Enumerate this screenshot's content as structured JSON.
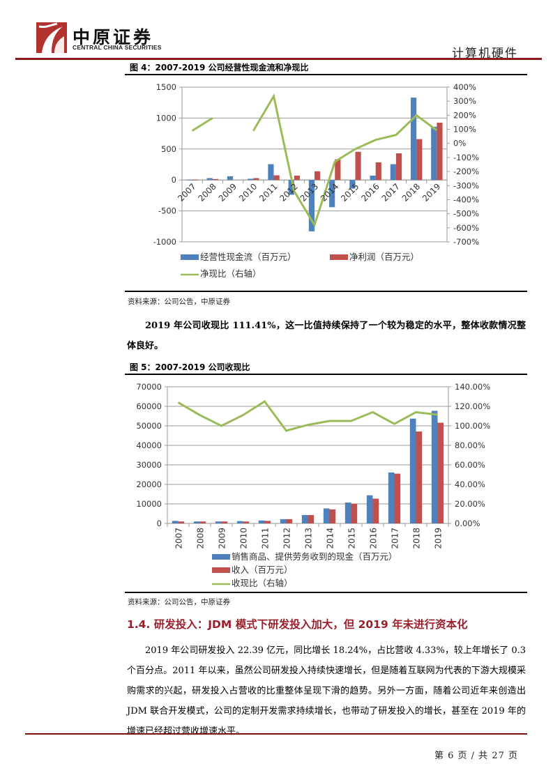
{
  "header": {
    "logo_cn": "中原证券",
    "logo_en": "CENTRAL CHINA SECURITIES",
    "category": "计算机硬件",
    "colors": {
      "brand": "#b2322f",
      "rule": "#8b1a1a"
    }
  },
  "figure4": {
    "title": "图 4：2007-2019 公司经营性现金流和净现比",
    "source": "资料来源：公司公告，中原证券"
  },
  "paragraph1": "2019 年公司收现比 111.41%，这一比值持续保持了一个较为稳定的水平，整体收款情况整体良好。",
  "figure5": {
    "title": "图 5：2007-2019 公司收现比",
    "source": "资料来源：公司公告，中原证券"
  },
  "section": {
    "title": "1.4. 研发投入：JDM 模式下研发投入加大，但 2019 年未进行资本化",
    "paragraph": "2019 年公司研发投入 22.39 亿元，同比增长 18.24%，占比营收 4.33%，较上年增长了 0.3 个百分点。2011 年以来，虽然公司研发投入持续快速增长，但是随着互联网为代表的下游大规模采购需求的兴起，研发投入占营收的比重整体呈现下滑的趋势。另外一方面，随着公司近年来创造出 JDM 联合开发模式，公司的定制开发需求持续增长，也带动了研发投入的增长，甚至在 2019 年的增速已经超过营收增速水平。"
  },
  "footer": {
    "page": "第 6 页 / 共 27 页"
  },
  "chart_data": [
    {
      "type": "bar",
      "title": "2007-2019 公司经营性现金流和净现比",
      "categories": [
        "2007",
        "2008",
        "2009",
        "2010",
        "2011",
        "2012",
        "2013",
        "2014",
        "2015",
        "2016",
        "2017",
        "2018",
        "2019"
      ],
      "series": [
        {
          "name": "经营性现金流（百万元）",
          "kind": "bar",
          "axis": "left",
          "color": "#4f81bd",
          "values": [
            5,
            30,
            60,
            20,
            255,
            -240,
            -830,
            -440,
            -140,
            70,
            255,
            1330,
            860
          ]
        },
        {
          "name": "净利润（百万元）",
          "kind": "bar",
          "axis": "left",
          "color": "#c0504d",
          "values": [
            5,
            15,
            0,
            30,
            75,
            70,
            140,
            335,
            455,
            285,
            430,
            660,
            925
          ]
        },
        {
          "name": "净现比（右轴）",
          "kind": "line",
          "axis": "right",
          "color": "#9bbb59",
          "values": [
            90,
            180,
            null,
            90,
            335,
            -340,
            -580,
            -130,
            -40,
            25,
            60,
            200,
            93
          ]
        }
      ],
      "ylim": [
        -1000,
        1500
      ],
      "yticks": [
        1500,
        1000,
        500,
        0,
        -500,
        -1000
      ],
      "y2lim": [
        -700,
        400
      ],
      "y2ticks": [
        "400%",
        "300%",
        "200%",
        "100%",
        "0%",
        "-100%",
        "-200%",
        "-300%",
        "-400%",
        "-500%",
        "-600%",
        "-700%"
      ],
      "xlabel": "",
      "ylabel": "",
      "y2label": "",
      "grid": true,
      "legend_position": "bottom",
      "x_tick_rotation": -45
    },
    {
      "type": "bar",
      "title": "2007-2019 公司收现比",
      "categories": [
        "2007",
        "2008",
        "2009",
        "2010",
        "2011",
        "2012",
        "2013",
        "2014",
        "2015",
        "2016",
        "2017",
        "2018",
        "2019"
      ],
      "series": [
        {
          "name": "销售商品、提供劳务收到的现金（百万元）",
          "kind": "bar",
          "axis": "left",
          "color": "#4f81bd",
          "values": [
            1300,
            1000,
            1000,
            1200,
            1500,
            2200,
            4300,
            7700,
            10700,
            14400,
            26100,
            53700,
            57700
          ]
        },
        {
          "name": "收入（百万元）",
          "kind": "bar",
          "axis": "left",
          "color": "#c0504d",
          "values": [
            1000,
            1000,
            1000,
            1000,
            1300,
            2200,
            4300,
            7200,
            10100,
            12700,
            25500,
            47100,
            51600
          ]
        },
        {
          "name": "收现比（右轴）",
          "kind": "line",
          "axis": "right",
          "color": "#9bbb59",
          "values": [
            124,
            111,
            100,
            111,
            125,
            95,
            101,
            105,
            105,
            114,
            102,
            114,
            111.41
          ]
        }
      ],
      "ylim": [
        0,
        70000
      ],
      "yticks": [
        70000,
        60000,
        50000,
        40000,
        30000,
        20000,
        10000,
        0
      ],
      "y2lim": [
        0,
        140
      ],
      "y2ticks": [
        "140.00%",
        "120.00%",
        "100.00%",
        "80.00%",
        "60.00%",
        "40.00%",
        "20.00%",
        "0.00%"
      ],
      "xlabel": "",
      "ylabel": "",
      "y2label": "",
      "grid": true,
      "legend_position": "bottom",
      "x_tick_rotation": -90
    }
  ]
}
